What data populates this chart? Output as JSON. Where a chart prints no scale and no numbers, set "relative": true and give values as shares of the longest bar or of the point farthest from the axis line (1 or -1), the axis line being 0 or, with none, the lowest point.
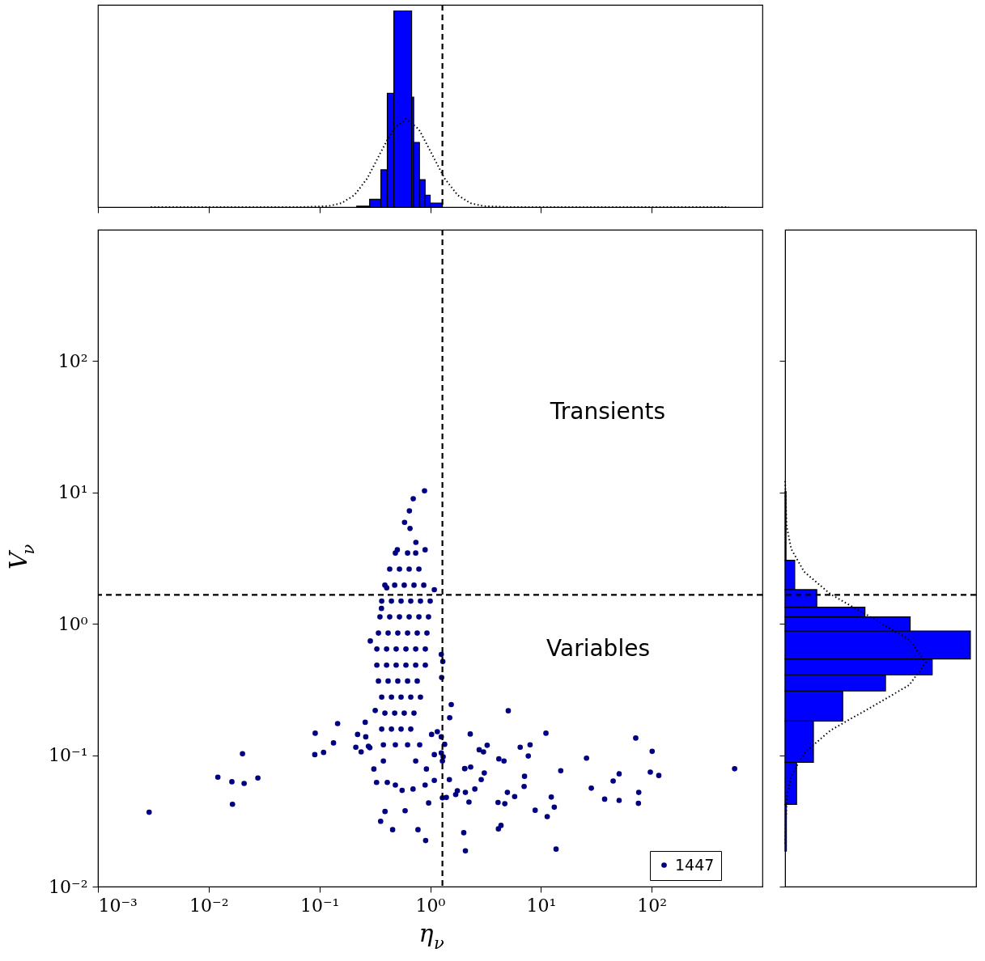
{
  "chart_data": [
    {
      "type": "histogram",
      "relative": true,
      "tick_labels": false,
      "color": "#0000ff",
      "bins": [
        0.217,
        0.284,
        0.359,
        0.41,
        0.47,
        0.68,
        0.71,
        0.8,
        0.9,
        1.0,
        1.29
      ],
      "values": [
        0.005,
        0.04,
        0.19,
        0.58,
        1.0,
        0.56,
        0.33,
        0.14,
        0.06,
        0.02
      ],
      "series": [
        {
          "type": "line",
          "color": "#000000",
          "line_style": "dotted",
          "x": [
            0.003,
            0.0706,
            0.121,
            0.158,
            0.207,
            0.27,
            0.353,
            0.462,
            0.604,
            0.79,
            1.03,
            1.35,
            1.77,
            2.31,
            3.02,
            5.16,
            500
          ],
          "values": [
            0,
            0.0002,
            0.005,
            0.02,
            0.061,
            0.146,
            0.273,
            0.397,
            0.45,
            0.397,
            0.273,
            0.146,
            0.061,
            0.02,
            0.005,
            0.0002,
            0
          ]
        }
      ],
      "xlim": [
        0.001,
        1000
      ],
      "log": "x",
      "xticks": [
        0.001,
        0.01,
        0.1,
        1,
        10,
        100
      ],
      "ref_lines": [
        {
          "axis": "x",
          "value": 1.29,
          "line_style": "dashed",
          "color": "#000000"
        }
      ]
    },
    {
      "type": "scatter",
      "xlabel": "η$_{ν}$",
      "ylabel": "V$_{ν}$",
      "log": "xy",
      "marker": "circle",
      "legend": "bottom right",
      "xlim": [
        0.001,
        1000
      ],
      "ylim": [
        0.01,
        1000
      ],
      "xticks": [
        {
          "value": 0.001,
          "label": "10⁻³"
        },
        {
          "value": 0.01,
          "label": "10⁻²"
        },
        {
          "value": 0.1,
          "label": "10⁻¹"
        },
        {
          "value": 1,
          "label": "10⁰"
        },
        {
          "value": 10,
          "label": "10¹"
        },
        {
          "value": 100,
          "label": "10²"
        }
      ],
      "yticks": [
        {
          "value": 0.01,
          "label": "10⁻²"
        },
        {
          "value": 0.1,
          "label": "10⁻¹"
        },
        {
          "value": 1,
          "label": "10⁰"
        },
        {
          "value": 10,
          "label": "10¹"
        },
        {
          "value": 100,
          "label": "10²"
        }
      ],
      "series": [
        {
          "name": "1447",
          "color": "#000080",
          "x": [
            0.0029,
            0.0121,
            0.0162,
            0.0209,
            0.0278,
            0.0202,
            0.0164,
            0.0916,
            0.0908,
            0.109,
            0.134,
            0.146,
            0.213,
            0.238,
            5.07,
            2.3,
            2.77,
            3.27,
            3.03,
            4.17,
            4.64,
            6.5,
            7.98,
            7.69,
            11.1,
            25.8,
            15.1,
            71.8,
            101,
            97.2,
            116,
            50.8,
            44.9,
            28.5,
            37.6,
            50.8,
            76.4,
            75.9,
            561,
            2.05,
            2.32,
            3.08,
            2.89,
            7.11,
            7.05,
            2.53,
            2.08,
            2.24,
            1.76,
            1.7,
            1.4,
            4.1,
            4.72,
            5.79,
            4.98,
            12.4,
            13.2,
            8.87,
            11.4,
            4.13,
            4.36,
            2.01,
            2.08,
            13.7,
            0.391,
            0.357,
            0.594,
            0.458,
            0.776,
            0.91,
            0.968,
            1.35,
            1.31,
            1.49,
            0.889,
            0.703,
            0.649,
            0.587,
            0.658,
            0.743,
            0.505,
            0.9,
            1.09,
            0.405,
            0.363,
            0.288,
            1.26,
            1.3,
            1.27,
            1.55,
            1.5,
            0.319,
            0.259,
            0.221,
            0.277,
            2.05,
            1.29,
            0.9,
            1.09,
            0.485,
            0.41,
            0.558,
            0.7,
            0.31,
            0.328,
            0.378,
            0.74,
            0.925,
            1.09,
            1.26,
            1.29,
            1.03,
            1.16,
            1.26,
            0.262,
            0.285,
            0.485,
            0.625,
            0.74,
            0.431,
            0.528,
            0.646,
            0.791,
            0.39,
            0.478,
            0.583,
            0.714,
            0.875,
            0.365,
            0.447,
            0.546,
            0.668,
            0.817,
            1.0,
            0.352,
            0.431,
            0.528,
            0.646,
            0.791,
            0.966,
            0.341,
            0.417,
            0.51,
            0.625,
            0.764,
            0.935,
            0.33,
            0.404,
            0.493,
            0.604,
            0.74,
            0.904,
            0.33,
            0.404,
            0.493,
            0.604,
            0.74,
            0.904,
            0.341,
            0.417,
            0.51,
            0.625,
            0.764,
            0.365,
            0.447,
            0.546,
            0.668,
            0.817,
            0.39,
            0.478,
            0.583,
            0.714,
            0.365,
            0.447,
            0.546,
            0.668,
            0.378,
            0.485,
            0.625,
            0.804
          ],
          "values": [
            0.0368,
            0.0681,
            0.0628,
            0.061,
            0.0671,
            0.1025,
            0.0423,
            0.147,
            0.101,
            0.105,
            0.124,
            0.174,
            0.115,
            0.106,
            0.218,
            0.145,
            0.11,
            0.119,
            0.106,
            0.0937,
            0.0904,
            0.115,
            0.12,
            0.0986,
            0.147,
            0.095,
            0.0761,
            0.135,
            0.107,
            0.0744,
            0.0701,
            0.0721,
            0.0636,
            0.0561,
            0.0463,
            0.0453,
            0.0521,
            0.043,
            0.0789,
            0.0789,
            0.0813,
            0.0732,
            0.0652,
            0.0691,
            0.0578,
            0.0553,
            0.0521,
            0.044,
            0.0537,
            0.0502,
            0.0477,
            0.0437,
            0.0427,
            0.0484,
            0.0521,
            0.048,
            0.0402,
            0.0381,
            0.0341,
            0.0275,
            0.0292,
            0.0257,
            0.0187,
            0.0193,
            0.0373,
            0.0314,
            0.0378,
            0.0271,
            0.0271,
            0.0224,
            0.0433,
            0.121,
            0.0973,
            0.0652,
            10.3,
            8.97,
            7.24,
            5.92,
            5.32,
            4.17,
            3.66,
            3.66,
            1.82,
            1.88,
            1.31,
            0.74,
            0.585,
            0.516,
            0.39,
            0.243,
            0.193,
            0.219,
            0.178,
            0.144,
            0.117,
            0.0792,
            0.0474,
            0.0593,
            0.0643,
            0.0593,
            0.0621,
            0.054,
            0.0553,
            0.0785,
            0.0621,
            0.0904,
            0.0904,
            0.0785,
            0.101,
            0.104,
            0.0904,
            0.144,
            0.151,
            0.138,
            0.138,
            0.114,
            3.46,
            3.46,
            3.46,
            2.61,
            2.61,
            2.61,
            2.61,
            1.97,
            1.97,
            1.97,
            1.97,
            1.97,
            1.49,
            1.49,
            1.49,
            1.49,
            1.49,
            1.49,
            1.13,
            1.13,
            1.13,
            1.13,
            1.13,
            1.13,
            0.851,
            0.851,
            0.851,
            0.851,
            0.851,
            0.851,
            0.643,
            0.643,
            0.643,
            0.643,
            0.643,
            0.643,
            0.485,
            0.485,
            0.485,
            0.485,
            0.485,
            0.485,
            0.367,
            0.367,
            0.367,
            0.367,
            0.367,
            0.277,
            0.277,
            0.277,
            0.277,
            0.277,
            0.209,
            0.209,
            0.209,
            0.209,
            0.158,
            0.158,
            0.158,
            0.158,
            0.12,
            0.12,
            0.12,
            0.12
          ]
        }
      ],
      "ref_lines": [
        {
          "axis": "x",
          "value": 1.29,
          "line_style": "dashed",
          "color": "#000000"
        },
        {
          "axis": "y",
          "value": 1.66,
          "line_style": "dashed",
          "color": "#000000"
        }
      ],
      "annotations": [
        "Transients",
        "Variables"
      ]
    },
    {
      "type": "histogram",
      "orientation": "horizontal",
      "relative": true,
      "tick_labels": false,
      "color": "#0000ff",
      "bins": [
        0.0186,
        0.0422,
        0.0882,
        0.182,
        0.309,
        0.409,
        0.541,
        0.883,
        1.13,
        1.34,
        1.82,
        3.05,
        10.2
      ],
      "values": [
        0.007,
        0.062,
        0.153,
        0.311,
        0.542,
        0.794,
        1.0,
        0.675,
        0.431,
        0.171,
        0.052,
        0.005
      ],
      "series": [
        {
          "type": "line",
          "color": "#000000",
          "line_style": "dotted",
          "x": [
            0.0212,
            0.047,
            0.0699,
            0.104,
            0.155,
            0.23,
            0.342,
            0.509,
            0.758,
            1.13,
            1.68,
            2.49,
            3.71,
            5.52,
            12.2
          ],
          "values": [
            0.0003,
            0.0084,
            0.0333,
            0.103,
            0.246,
            0.46,
            0.67,
            0.759,
            0.67,
            0.46,
            0.246,
            0.103,
            0.0333,
            0.0084,
            0.0003
          ]
        }
      ],
      "ylim": [
        0.01,
        1000
      ],
      "log": "y",
      "yticks": [
        0.01,
        0.1,
        1,
        10,
        100
      ],
      "ref_lines": [
        {
          "axis": "y",
          "value": 1.66,
          "line_style": "dashed",
          "color": "#000000"
        }
      ]
    }
  ]
}
